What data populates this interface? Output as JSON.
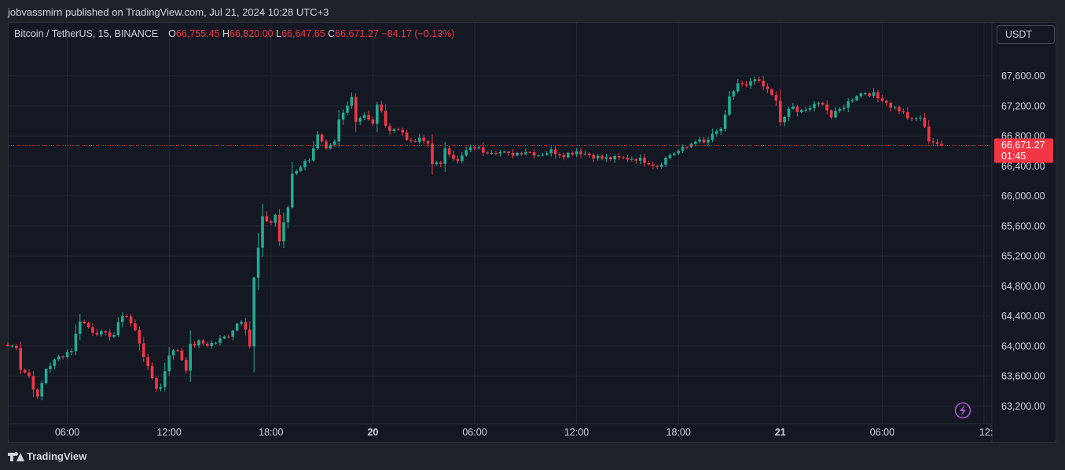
{
  "header": {
    "published_text": "jobvassmirn published on TradingView.com, Jul 21, 2024 10:28 UTC+3"
  },
  "legend": {
    "symbol": "Bitcoin / TetherUS, 15, BINANCE",
    "open_label": "O",
    "open": "66,755.45",
    "high_label": "H",
    "high": "66,820.00",
    "low_label": "L",
    "low": "66,647.65",
    "close_label": "C",
    "close": "66,671.27",
    "change": "−84.17 (−0.13%)"
  },
  "currency_button": {
    "label": "USDT"
  },
  "price_tag": {
    "price": "66,671.27",
    "countdown": "01:45"
  },
  "footer": {
    "brand": "TradingView"
  },
  "colors": {
    "up": "#22ab94",
    "down": "#f23645",
    "background": "#141823",
    "grid": "#232733",
    "text": "#d1d4dc",
    "lightning": "#b04fd9"
  },
  "icons": {
    "alert": "lightning-icon"
  },
  "chart_data": {
    "type": "candlestick",
    "symbol": "BTCUSDT",
    "timeframe": "15",
    "y_axis": {
      "ylim": [
        63000,
        67850
      ],
      "ticks": [
        63200,
        63600,
        64000,
        64400,
        64800,
        65200,
        65600,
        66000,
        66400,
        66800,
        67200,
        67600
      ],
      "tick_labels": [
        "63,200.00",
        "63,600.00",
        "64,000.00",
        "64,400.00",
        "64,800.00",
        "65,200.00",
        "65,600.00",
        "66,000.00",
        "66,400.00",
        "66,800.00",
        "67,200.00",
        "67,600.00"
      ]
    },
    "x_axis": {
      "bar_range": [
        0,
        220
      ],
      "ticks": [
        {
          "bar": 14,
          "label": "06:00"
        },
        {
          "bar": 38,
          "label": "12:00"
        },
        {
          "bar": 62,
          "label": "18:00"
        },
        {
          "bar": 86,
          "label": "20",
          "bold": true
        },
        {
          "bar": 110,
          "label": "06:00"
        },
        {
          "bar": 134,
          "label": "12:00"
        },
        {
          "bar": 158,
          "label": "18:00"
        },
        {
          "bar": 182,
          "label": "21",
          "bold": true
        },
        {
          "bar": 206,
          "label": "06:00"
        },
        {
          "bar": 230,
          "label": "12:"
        }
      ]
    },
    "last_price": 66671.27,
    "grid": true,
    "anchors": [
      [
        0,
        64000
      ],
      [
        2,
        64000
      ],
      [
        3,
        63700
      ],
      [
        5,
        63600
      ],
      [
        7,
        63300
      ],
      [
        9,
        63700
      ],
      [
        12,
        63850
      ],
      [
        15,
        63950
      ],
      [
        17,
        64350
      ],
      [
        20,
        64200
      ],
      [
        23,
        64150
      ],
      [
        25,
        64150
      ],
      [
        27,
        64420
      ],
      [
        28,
        64400
      ],
      [
        30,
        64200
      ],
      [
        31,
        64050
      ],
      [
        33,
        63700
      ],
      [
        35,
        63450
      ],
      [
        36,
        63450
      ],
      [
        38,
        63900
      ],
      [
        40,
        63950
      ],
      [
        42,
        63700
      ],
      [
        43,
        64000
      ],
      [
        45,
        64050
      ],
      [
        47,
        64020
      ],
      [
        49,
        64050
      ],
      [
        52,
        64150
      ],
      [
        54,
        64300
      ],
      [
        55,
        64350
      ],
      [
        56,
        64250
      ],
      [
        57,
        64000
      ],
      [
        58,
        64900
      ],
      [
        60,
        65700
      ],
      [
        62,
        65650
      ],
      [
        63,
        65750
      ],
      [
        64,
        65400
      ],
      [
        66,
        65850
      ],
      [
        67,
        66300
      ],
      [
        69,
        66400
      ],
      [
        71,
        66500
      ],
      [
        73,
        66800
      ],
      [
        75,
        66600
      ],
      [
        77,
        66700
      ],
      [
        78,
        67000
      ],
      [
        80,
        67200
      ],
      [
        81,
        67350
      ],
      [
        82,
        67000
      ],
      [
        84,
        67100
      ],
      [
        86,
        66950
      ],
      [
        87,
        67200
      ],
      [
        88,
        67150
      ],
      [
        89,
        66900
      ],
      [
        91,
        66900
      ],
      [
        93,
        66850
      ],
      [
        95,
        66700
      ],
      [
        97,
        66750
      ],
      [
        99,
        66700
      ],
      [
        100,
        66450
      ],
      [
        102,
        66400
      ],
      [
        103,
        66650
      ],
      [
        106,
        66450
      ],
      [
        108,
        66600
      ],
      [
        110,
        66650
      ],
      [
        112,
        66600
      ],
      [
        115,
        66600
      ],
      [
        118,
        66550
      ],
      [
        122,
        66600
      ],
      [
        125,
        66550
      ],
      [
        128,
        66600
      ],
      [
        131,
        66550
      ],
      [
        134,
        66600
      ],
      [
        137,
        66550
      ],
      [
        140,
        66500
      ],
      [
        144,
        66500
      ],
      [
        148,
        66500
      ],
      [
        151,
        66450
      ],
      [
        153,
        66400
      ],
      [
        156,
        66550
      ],
      [
        158,
        66600
      ],
      [
        160,
        66650
      ],
      [
        162,
        66750
      ],
      [
        164,
        66700
      ],
      [
        166,
        66800
      ],
      [
        168,
        66900
      ],
      [
        169,
        67050
      ],
      [
        170,
        67300
      ],
      [
        172,
        67500
      ],
      [
        174,
        67450
      ],
      [
        176,
        67550
      ],
      [
        178,
        67450
      ],
      [
        180,
        67350
      ],
      [
        181,
        67300
      ],
      [
        182,
        66950
      ],
      [
        184,
        67150
      ],
      [
        185,
        67200
      ],
      [
        186,
        67100
      ],
      [
        188,
        67150
      ],
      [
        190,
        67200
      ],
      [
        192,
        67250
      ],
      [
        194,
        67050
      ],
      [
        196,
        67150
      ],
      [
        198,
        67250
      ],
      [
        200,
        67350
      ],
      [
        202,
        67380
      ],
      [
        204,
        67350
      ],
      [
        205,
        67300
      ],
      [
        206,
        67300
      ],
      [
        208,
        67200
      ],
      [
        210,
        67150
      ],
      [
        212,
        67050
      ],
      [
        213,
        67000
      ],
      [
        215,
        67050
      ],
      [
        217,
        66750
      ],
      [
        219,
        66700
      ],
      [
        220,
        66671
      ]
    ]
  }
}
